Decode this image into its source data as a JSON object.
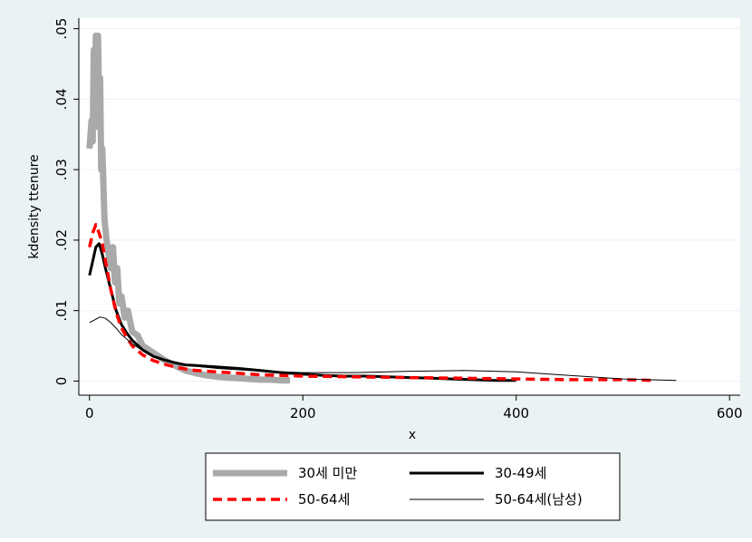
{
  "chart_data": {
    "type": "line",
    "title": "",
    "xlabel": "x",
    "ylabel": "kdensity ttenure",
    "xlim": [
      -10,
      610
    ],
    "ylim": [
      -0.002,
      0.0515
    ],
    "xticks": [
      0,
      200,
      400,
      600
    ],
    "xtick_labels": [
      "0",
      "200",
      "400",
      "600"
    ],
    "yticks": [
      0,
      0.01,
      0.02,
      0.03,
      0.04,
      0.05
    ],
    "ytick_labels": [
      "0",
      ".01",
      ".02",
      ".03",
      ".04",
      ".05"
    ],
    "grid": true,
    "legend_position": "bottom",
    "colors": {
      "plot_background": "#ffffff",
      "outer_background": "#eaf2f3",
      "gridline": "#eaf2f3"
    },
    "series": [
      {
        "name": "30세 미만",
        "color": "#a9a9a9",
        "style": "thick",
        "x": [
          0,
          2,
          3,
          4,
          5,
          6,
          7,
          8,
          9,
          10,
          11,
          12,
          14,
          16,
          18,
          20,
          22,
          24,
          26,
          28,
          30,
          33,
          36,
          40,
          45,
          50,
          55,
          60,
          70,
          80,
          90,
          100,
          110,
          120,
          130,
          140,
          150,
          160,
          170,
          180,
          188
        ],
        "y": [
          0.033,
          0.037,
          0.034,
          0.047,
          0.036,
          0.049,
          0.041,
          0.049,
          0.039,
          0.043,
          0.03,
          0.033,
          0.023,
          0.02,
          0.018,
          0.016,
          0.019,
          0.014,
          0.016,
          0.011,
          0.012,
          0.009,
          0.01,
          0.007,
          0.0065,
          0.005,
          0.0045,
          0.004,
          0.003,
          0.0022,
          0.0015,
          0.0011,
          0.0008,
          0.0006,
          0.0005,
          0.0004,
          0.0003,
          0.0002,
          0.0002,
          0.0001,
          0.0001
        ]
      },
      {
        "name": "30-49세",
        "color": "#000000",
        "style": "medium",
        "x": [
          0,
          3,
          6,
          9,
          12,
          15,
          20,
          25,
          30,
          35,
          40,
          50,
          60,
          70,
          80,
          90,
          100,
          110,
          120,
          130,
          140,
          160,
          180,
          200,
          220,
          240,
          260,
          280,
          300,
          320,
          340,
          360,
          380,
          400
        ],
        "y": [
          0.015,
          0.017,
          0.019,
          0.0195,
          0.018,
          0.016,
          0.013,
          0.01,
          0.008,
          0.0068,
          0.0058,
          0.0044,
          0.0035,
          0.003,
          0.0026,
          0.0023,
          0.0022,
          0.0021,
          0.002,
          0.0019,
          0.0018,
          0.0015,
          0.0012,
          0.001,
          0.0008,
          0.0007,
          0.0007,
          0.0006,
          0.0005,
          0.0004,
          0.0003,
          0.0002,
          0.0001,
          0.0001
        ]
      },
      {
        "name": "50-64세",
        "color": "#ff0000",
        "style": "dashed",
        "x": [
          0,
          3,
          6,
          9,
          12,
          15,
          20,
          25,
          30,
          35,
          40,
          50,
          60,
          70,
          80,
          90,
          100,
          120,
          140,
          160,
          180,
          200,
          250,
          300,
          350,
          400,
          450,
          500,
          530
        ],
        "y": [
          0.019,
          0.021,
          0.0222,
          0.021,
          0.0195,
          0.017,
          0.013,
          0.0097,
          0.0075,
          0.0062,
          0.005,
          0.0037,
          0.0029,
          0.0024,
          0.002,
          0.0017,
          0.0015,
          0.0013,
          0.0011,
          0.0009,
          0.0008,
          0.0007,
          0.0006,
          0.0005,
          0.0004,
          0.0003,
          0.0002,
          0.0002,
          0.0001
        ]
      },
      {
        "name": "50-64세(남성)",
        "color": "#000000",
        "style": "thin",
        "x": [
          0,
          5,
          10,
          15,
          20,
          25,
          30,
          40,
          50,
          60,
          70,
          80,
          100,
          120,
          150,
          200,
          250,
          300,
          350,
          400,
          450,
          500,
          550
        ],
        "y": [
          0.0083,
          0.0087,
          0.0091,
          0.0089,
          0.0083,
          0.0075,
          0.0066,
          0.0053,
          0.0043,
          0.0035,
          0.003,
          0.0026,
          0.0021,
          0.0018,
          0.0015,
          0.0012,
          0.0012,
          0.0014,
          0.0015,
          0.0013,
          0.0008,
          0.0003,
          0.0001
        ]
      }
    ]
  }
}
